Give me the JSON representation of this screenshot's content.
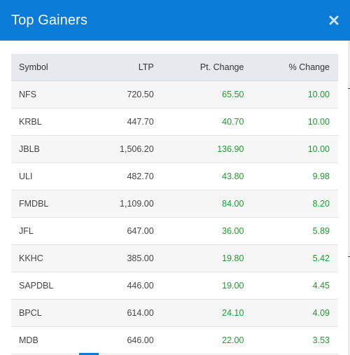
{
  "modal": {
    "title": "Top Gainers",
    "close_icon": "close-icon",
    "accent_color": "#0a7bd6",
    "positive_color": "#1e9a2e"
  },
  "table": {
    "headers": {
      "symbol": "Symbol",
      "ltp": "LTP",
      "pt_change": "Pt. Change",
      "pct_change": "% Change"
    },
    "rows": [
      {
        "symbol": "NFS",
        "ltp": "720.50",
        "pt_change": "65.50",
        "pct_change": "10.00"
      },
      {
        "symbol": "KRBL",
        "ltp": "447.70",
        "pt_change": "40.70",
        "pct_change": "10.00"
      },
      {
        "symbol": "JBLB",
        "ltp": "1,506.20",
        "pt_change": "136.90",
        "pct_change": "10.00"
      },
      {
        "symbol": "ULI",
        "ltp": "482.70",
        "pt_change": "43.80",
        "pct_change": "9.98"
      },
      {
        "symbol": "FMDBL",
        "ltp": "1,109.00",
        "pt_change": "84.00",
        "pct_change": "8.20"
      },
      {
        "symbol": "JFL",
        "ltp": "647.00",
        "pt_change": "36.00",
        "pct_change": "5.89"
      },
      {
        "symbol": "KKHC",
        "ltp": "385.00",
        "pt_change": "19.80",
        "pct_change": "5.42"
      },
      {
        "symbol": "SAPDBL",
        "ltp": "446.00",
        "pt_change": "19.00",
        "pct_change": "4.45"
      },
      {
        "symbol": "BPCL",
        "ltp": "614.00",
        "pt_change": "24.10",
        "pct_change": "4.09"
      },
      {
        "symbol": "MDB",
        "ltp": "646.00",
        "pt_change": "22.00",
        "pct_change": "3.53"
      }
    ]
  }
}
